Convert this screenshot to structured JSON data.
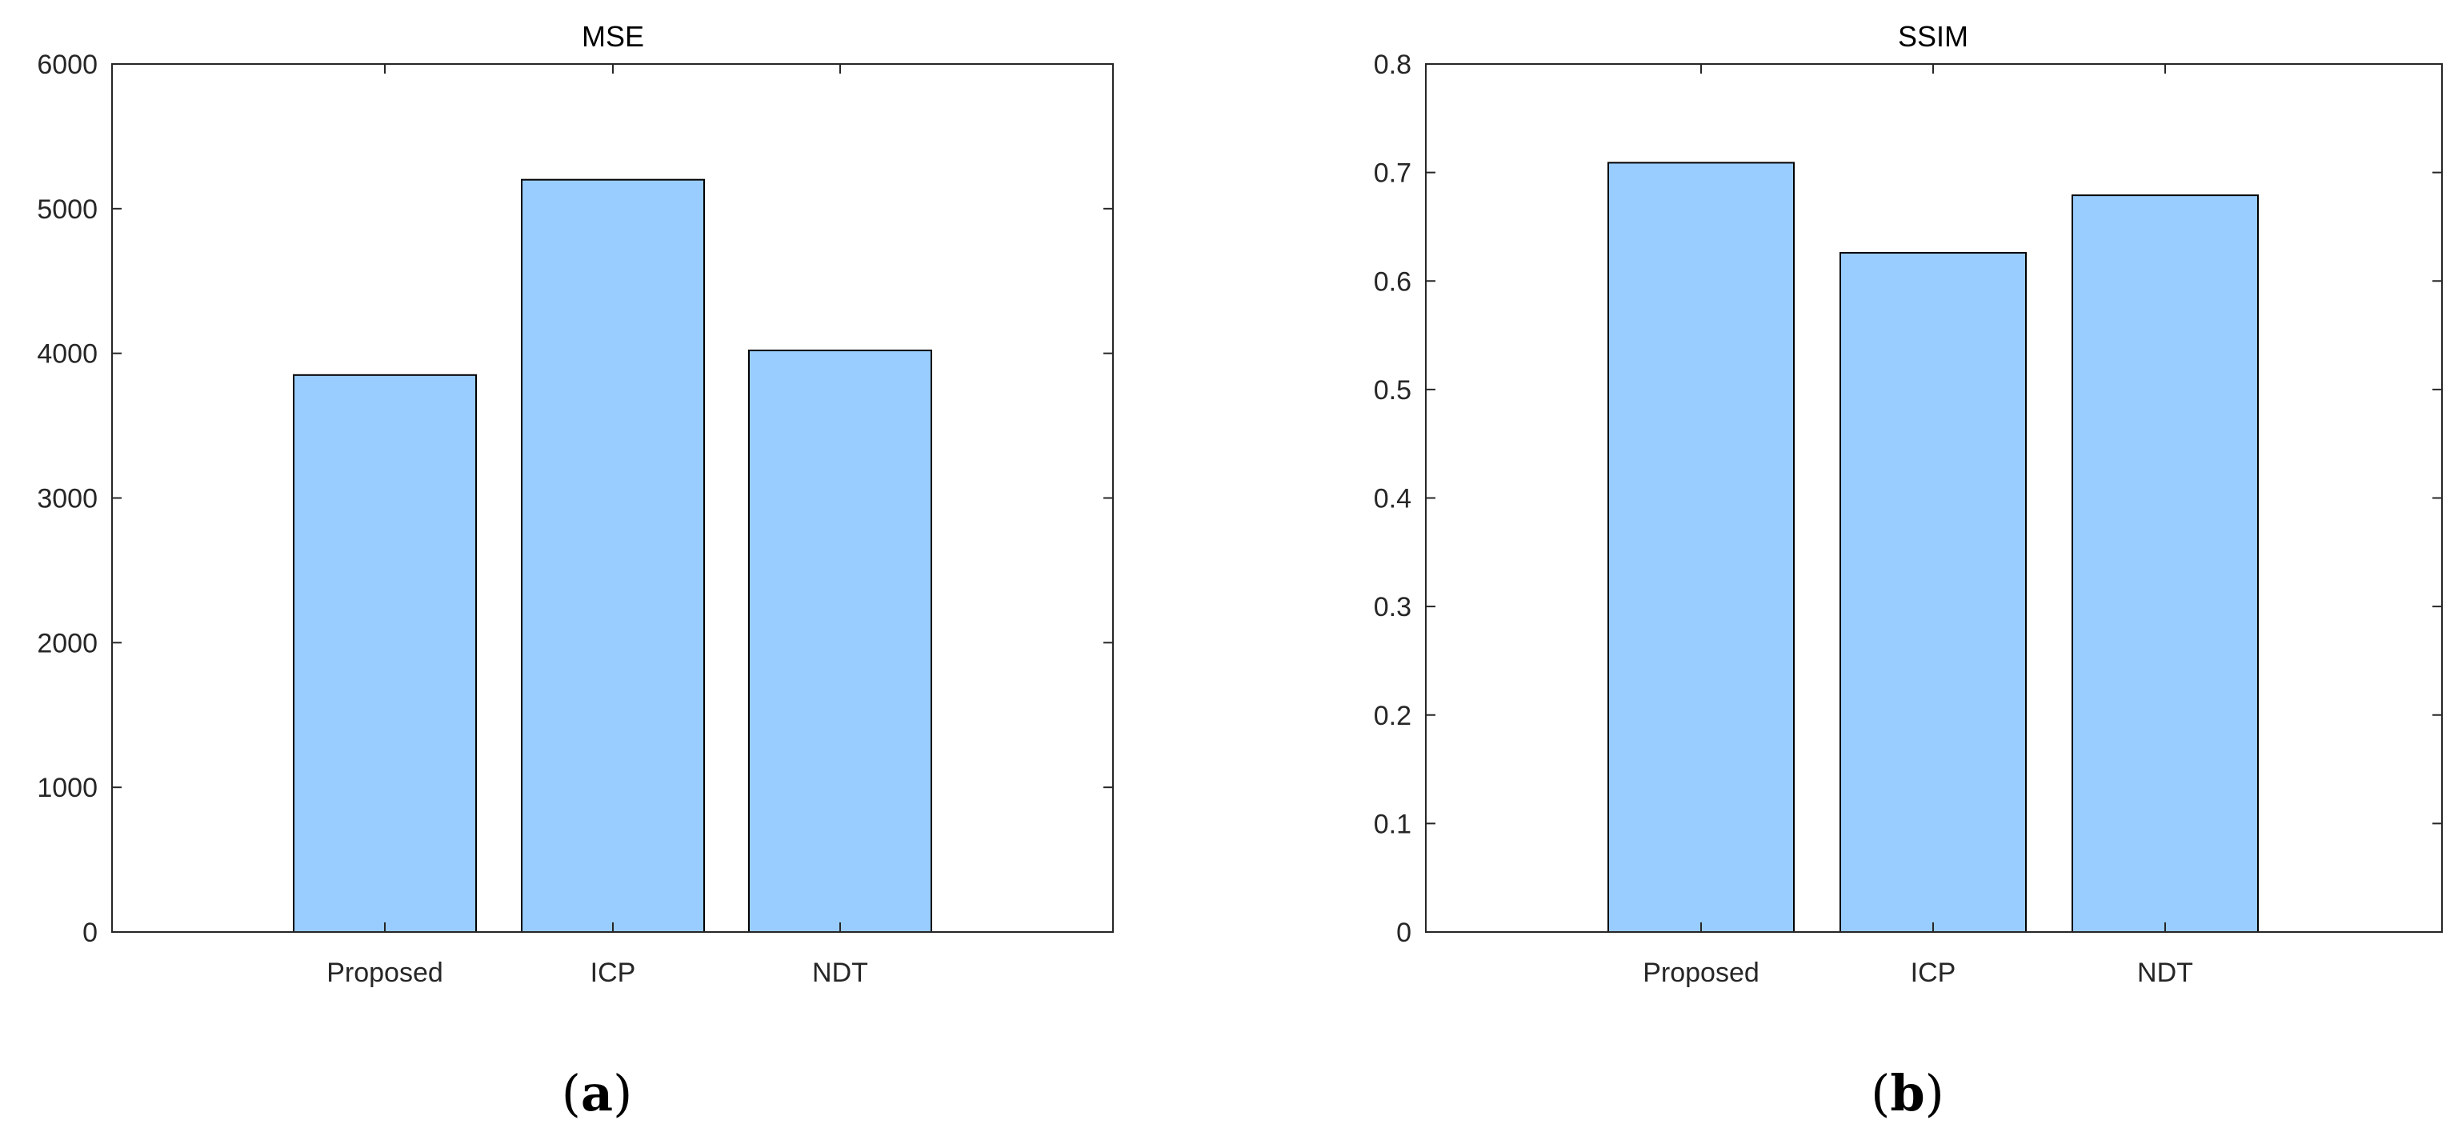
{
  "chart_data": [
    {
      "type": "bar",
      "panel_label": "a",
      "title": "MSE",
      "categories": [
        "Proposed",
        "ICP",
        "NDT"
      ],
      "values": [
        3850,
        5200,
        4020
      ],
      "xlabel": "",
      "ylabel": "",
      "ylim": [
        0,
        6000
      ],
      "yticks": [
        0,
        1000,
        2000,
        3000,
        4000,
        5000,
        6000
      ],
      "ytick_labels": [
        "0",
        "1000",
        "2000",
        "3000",
        "4000",
        "5000",
        "6000"
      ],
      "grid": false,
      "bar_color": "#99ccff"
    },
    {
      "type": "bar",
      "panel_label": "b",
      "title": "SSIM",
      "categories": [
        "Proposed",
        "ICP",
        "NDT"
      ],
      "values": [
        0.709,
        0.626,
        0.679
      ],
      "xlabel": "",
      "ylabel": "",
      "ylim": [
        0,
        0.8
      ],
      "yticks": [
        0,
        0.1,
        0.2,
        0.3,
        0.4,
        0.5,
        0.6,
        0.7,
        0.8
      ],
      "ytick_labels": [
        "0",
        "0.1",
        "0.2",
        "0.3",
        "0.4",
        "0.5",
        "0.6",
        "0.7",
        "0.8"
      ],
      "grid": false,
      "bar_color": "#99ccff"
    }
  ]
}
